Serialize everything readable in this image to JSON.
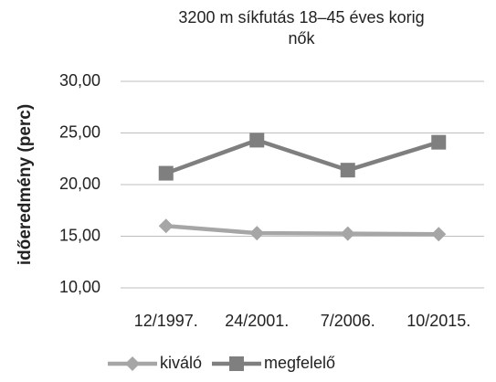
{
  "chart_data": {
    "type": "line",
    "title": "3200 m síkfutás 18–45 éves korig nők",
    "y_label": "időeredmény (perc)",
    "categories": [
      "12/1997.",
      "24/2001.",
      "7/2006.",
      "10/2015."
    ],
    "series": [
      {
        "name": "kiváló",
        "color": "#a6a6a6",
        "marker": "diamond",
        "values": [
          16.0,
          15.3,
          15.25,
          15.2
        ]
      },
      {
        "name": "megfelelő",
        "color": "#7f7f7f",
        "marker": "square",
        "values": [
          21.1,
          24.3,
          21.4,
          24.1
        ]
      }
    ],
    "ylim": [
      10,
      30
    ],
    "yticks": [
      {
        "value": 10,
        "label": "10,00"
      },
      {
        "value": 15,
        "label": "15,00"
      },
      {
        "value": 20,
        "label": "20,00"
      },
      {
        "value": 25,
        "label": "25,00"
      },
      {
        "value": 30,
        "label": "30,00"
      }
    ],
    "grid": true,
    "legend": "bottom"
  }
}
